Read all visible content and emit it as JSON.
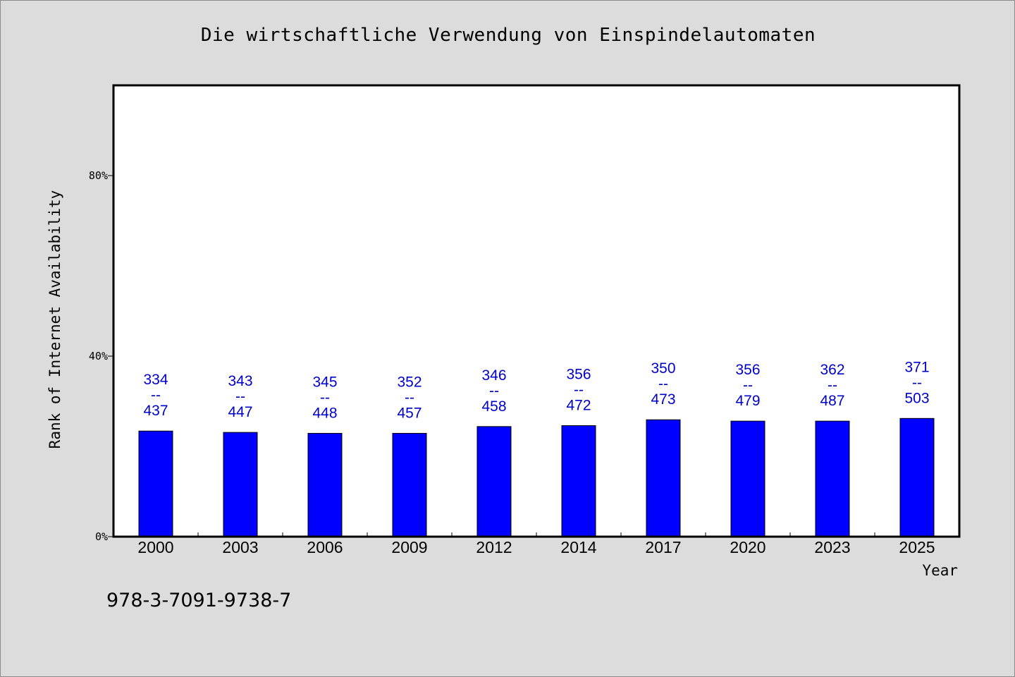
{
  "page": {
    "title": "Die wirtschaftliche Verwendung von Einspindelautomaten",
    "footer_code": "978-3-7091-9738-7"
  },
  "chart_data": {
    "type": "bar",
    "title": "Die wirtschaftliche Verwendung von Einspindelautomaten",
    "xlabel": "Year",
    "ylabel": "Rank of Internet Availability",
    "categories": [
      "2000",
      "2003",
      "2006",
      "2009",
      "2012",
      "2014",
      "2017",
      "2020",
      "2023",
      "2025"
    ],
    "values": [
      23.4,
      23.1,
      22.9,
      22.9,
      24.4,
      24.6,
      25.9,
      25.6,
      25.6,
      26.2
    ],
    "labels_top": [
      "334",
      "343",
      "345",
      "352",
      "346",
      "356",
      "350",
      "356",
      "362",
      "371"
    ],
    "labels_sep": "--",
    "labels_bottom": [
      "437",
      "447",
      "448",
      "457",
      "458",
      "472",
      "473",
      "479",
      "487",
      "503"
    ],
    "ylim": [
      0,
      100
    ],
    "yticks": [
      0,
      40,
      80
    ],
    "ytick_labels": [
      "0%",
      "40%",
      "80%"
    ],
    "grid": false,
    "bar_color": "#0000ff",
    "label_color": "#0000cc"
  }
}
